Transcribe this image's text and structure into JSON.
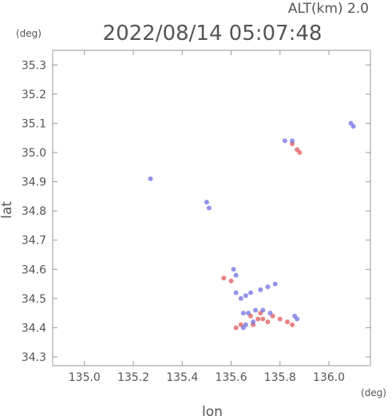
{
  "header": {
    "altitude_label": "ALT(km)  2.0",
    "timestamp": "2022/08/14  05:07:48"
  },
  "chart_data": {
    "type": "scatter",
    "title": "2022/08/14  05:07:48",
    "xlabel": "lon",
    "ylabel": "lat",
    "x_unit": "(deg)",
    "y_unit": "(deg)",
    "xlim": [
      134.87,
      136.17
    ],
    "ylim": [
      34.27,
      35.35
    ],
    "xticks": [
      "135.0",
      "135.2",
      "135.4",
      "135.6",
      "135.8",
      "136.0"
    ],
    "yticks": [
      "34.3",
      "34.4",
      "34.5",
      "34.6",
      "34.7",
      "34.8",
      "34.9",
      "35.0",
      "35.1",
      "35.2",
      "35.3"
    ],
    "grid": false,
    "series": [
      {
        "color": "#e05a5a",
        "points": [
          [
            135.87,
            35.01
          ],
          [
            135.88,
            35.0
          ],
          [
            135.85,
            35.03
          ],
          [
            135.6,
            34.56
          ],
          [
            135.57,
            34.57
          ],
          [
            135.62,
            34.4
          ],
          [
            135.64,
            34.41
          ],
          [
            135.68,
            34.44
          ],
          [
            135.71,
            34.43
          ],
          [
            135.73,
            34.43
          ],
          [
            135.75,
            34.42
          ],
          [
            135.77,
            34.44
          ],
          [
            135.8,
            34.43
          ],
          [
            135.83,
            34.42
          ],
          [
            135.72,
            34.45
          ],
          [
            135.69,
            34.41
          ],
          [
            135.85,
            34.41
          ]
        ]
      },
      {
        "color": "#7070e0",
        "points": [
          [
            136.09,
            35.1
          ],
          [
            136.1,
            35.09
          ],
          [
            135.82,
            35.04
          ],
          [
            135.85,
            35.04
          ],
          [
            135.27,
            34.91
          ],
          [
            135.51,
            34.81
          ],
          [
            135.5,
            34.83
          ],
          [
            135.61,
            34.6
          ],
          [
            135.62,
            34.58
          ],
          [
            135.62,
            34.52
          ],
          [
            135.64,
            34.5
          ],
          [
            135.66,
            34.51
          ],
          [
            135.68,
            34.52
          ],
          [
            135.72,
            34.53
          ],
          [
            135.75,
            34.54
          ],
          [
            135.78,
            34.55
          ],
          [
            135.65,
            34.45
          ],
          [
            135.67,
            34.45
          ],
          [
            135.7,
            34.46
          ],
          [
            135.73,
            34.46
          ],
          [
            135.76,
            34.45
          ],
          [
            135.66,
            34.41
          ],
          [
            135.65,
            34.4
          ],
          [
            135.86,
            34.44
          ],
          [
            135.87,
            34.43
          ],
          [
            135.69,
            34.42
          ]
        ]
      }
    ]
  }
}
